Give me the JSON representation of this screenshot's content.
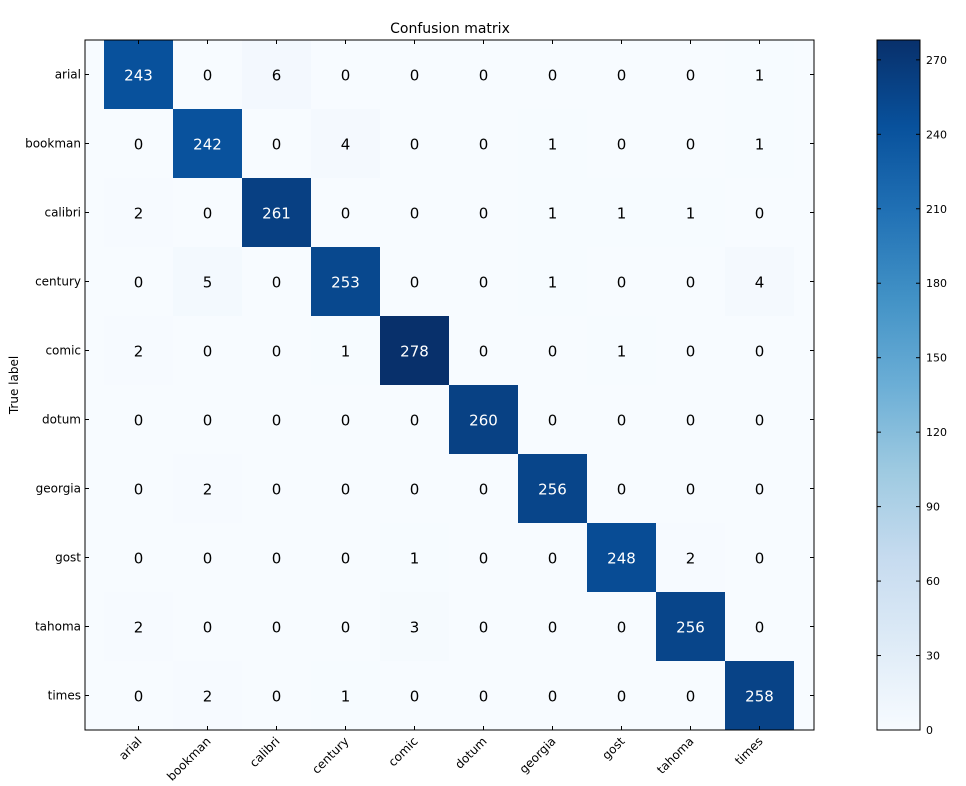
{
  "chart_data": {
    "type": "heatmap",
    "title": "Confusion matrix",
    "ylabel": "True label",
    "xlabel": "",
    "row_labels": [
      "arial",
      "bookman",
      "calibri",
      "century",
      "comic",
      "dotum",
      "georgia",
      "gost",
      "tahoma",
      "times"
    ],
    "col_labels": [
      "arial",
      "bookman",
      "calibri",
      "century",
      "comic",
      "dotum",
      "georgia",
      "gost",
      "tahoma",
      "times"
    ],
    "matrix": [
      [
        243,
        0,
        6,
        0,
        0,
        0,
        0,
        0,
        0,
        1
      ],
      [
        0,
        242,
        0,
        4,
        0,
        0,
        1,
        0,
        0,
        1
      ],
      [
        2,
        0,
        261,
        0,
        0,
        0,
        1,
        1,
        1,
        0
      ],
      [
        0,
        5,
        0,
        253,
        0,
        0,
        1,
        0,
        0,
        4
      ],
      [
        2,
        0,
        0,
        1,
        278,
        0,
        0,
        1,
        0,
        0
      ],
      [
        0,
        0,
        0,
        0,
        0,
        260,
        0,
        0,
        0,
        0
      ],
      [
        0,
        2,
        0,
        0,
        0,
        0,
        256,
        0,
        0,
        0
      ],
      [
        0,
        0,
        0,
        0,
        1,
        0,
        0,
        248,
        2,
        0
      ],
      [
        2,
        0,
        0,
        0,
        3,
        0,
        0,
        0,
        256,
        0
      ],
      [
        0,
        2,
        0,
        1,
        0,
        0,
        0,
        0,
        0,
        258
      ]
    ],
    "colormap": "Blues",
    "vmin": 0,
    "vmax": 278,
    "colorbar_ticks": [
      0,
      30,
      60,
      90,
      120,
      150,
      180,
      210,
      240,
      270
    ],
    "cell_text_threshold": 139,
    "colors": {
      "low": "#f7fbff",
      "high": "#08306b",
      "text_dark": "#000000",
      "text_light": "#ffffff"
    }
  }
}
